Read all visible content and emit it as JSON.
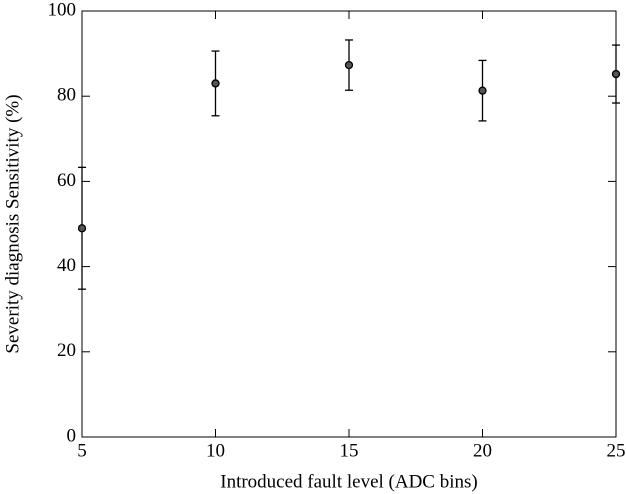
{
  "chart_data": {
    "type": "scatter",
    "xlabel": "Introduced fault level (ADC bins)",
    "ylabel": "Severity diagnosis Sensitivity (%)",
    "x": [
      5,
      10,
      15,
      20,
      25
    ],
    "values": [
      49,
      83,
      87.3,
      81.3,
      85.2
    ],
    "errors": [
      14.3,
      7.6,
      5.9,
      7.1,
      6.8
    ],
    "color": "#000000",
    "xlim": [
      5,
      25
    ],
    "ylim": [
      0,
      100
    ],
    "xticks": [
      5,
      10,
      15,
      20,
      25
    ],
    "yticks": [
      0,
      20,
      40,
      60,
      80,
      100
    ]
  }
}
